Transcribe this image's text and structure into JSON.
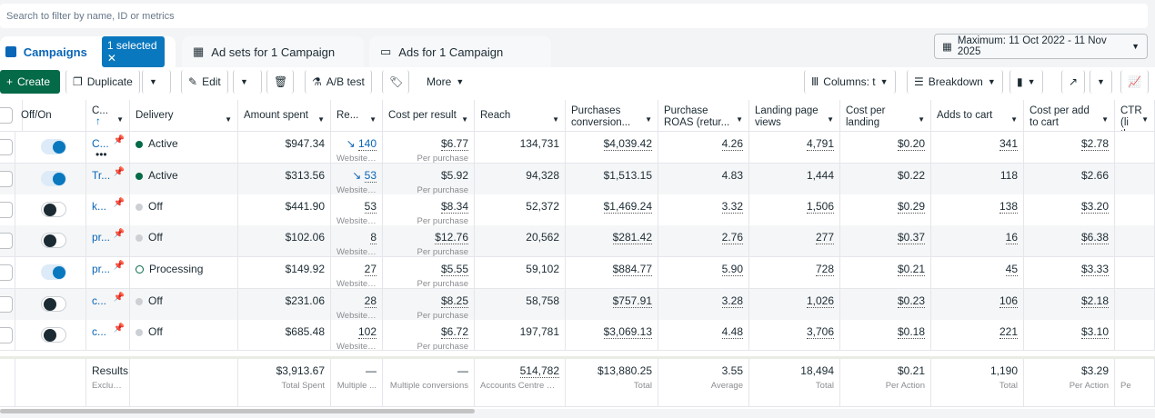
{
  "search": {
    "placeholder": "Search to filter by name, ID or metrics"
  },
  "tabs": {
    "campaigns": "Campaigns",
    "selected": "1 selected",
    "adsets": "Ad sets for 1 Campaign",
    "ads": "Ads for 1 Campaign"
  },
  "date_range": "Maximum: 11 Oct 2022 - 11 Nov 2025",
  "toolbar": {
    "create": "Create",
    "duplicate": "Duplicate",
    "edit": "Edit",
    "abtest": "A/B test",
    "more": "More",
    "columns": "Columns: t",
    "breakdown": "Breakdown"
  },
  "colors": {
    "accent": "#0a78be",
    "create": "#046a47",
    "active": "#046a47"
  },
  "columns": [
    "",
    "Off/On",
    "C...",
    "Delivery",
    "Amount spent",
    "Re...",
    "Cost per result",
    "Reach",
    "Purchases conversion...",
    "Purchase ROAS (retur...",
    "Landing page views",
    "Cost per landing page...",
    "Adds to cart",
    "Cost per add to cart",
    "CTR (li throug"
  ],
  "rows": [
    {
      "on": true,
      "name": "C...",
      "delivery": "Active",
      "status": "active",
      "spent": "$947.34",
      "results": "140",
      "trend": true,
      "results_sub": "Website ...",
      "cpr": "$6.77",
      "cpr_sub": "Per purchase",
      "reach": "134,731",
      "pconv": "$4,039.42",
      "roas": "4.26",
      "lpv": "4,791",
      "clpv": "$0.20",
      "atc": "341",
      "catc": "$2.78"
    },
    {
      "on": true,
      "name": "Tr...",
      "delivery": "Active",
      "status": "active",
      "spent": "$313.56",
      "results": "53",
      "trend": true,
      "results_sub": "Website ...",
      "cpr": "$5.92",
      "cpr_sub": "Per purchase",
      "reach": "94,328",
      "pconv": "$1,513.15",
      "roas": "4.83",
      "lpv": "1,444",
      "clpv": "$0.22",
      "atc": "118",
      "catc": "$2.66"
    },
    {
      "on": false,
      "name": "k...",
      "delivery": "Off",
      "status": "off",
      "spent": "$441.90",
      "results": "53",
      "results_sub": "Website ...",
      "cpr": "$8.34",
      "cpr_sub": "Per purchase",
      "reach": "52,372",
      "pconv": "$1,469.24",
      "roas": "3.32",
      "lpv": "1,506",
      "clpv": "$0.29",
      "atc": "138",
      "catc": "$3.20"
    },
    {
      "on": false,
      "name": "pr...",
      "delivery": "Off",
      "status": "off",
      "spent": "$102.06",
      "results": "8",
      "results_sub": "Website ...",
      "cpr": "$12.76",
      "cpr_sub": "Per purchase",
      "reach": "20,562",
      "pconv": "$281.42",
      "roas": "2.76",
      "lpv": "277",
      "clpv": "$0.37",
      "atc": "16",
      "catc": "$6.38"
    },
    {
      "on": true,
      "name": "pr...",
      "delivery": "Processing",
      "status": "processing",
      "spent": "$149.92",
      "results": "27",
      "results_sub": "Website ...",
      "cpr": "$5.55",
      "cpr_sub": "Per purchase",
      "reach": "59,102",
      "pconv": "$884.77",
      "roas": "5.90",
      "lpv": "728",
      "clpv": "$0.21",
      "atc": "45",
      "catc": "$3.33"
    },
    {
      "on": false,
      "name": "c...",
      "delivery": "Off",
      "status": "off",
      "spent": "$231.06",
      "results": "28",
      "results_sub": "Website ...",
      "cpr": "$8.25",
      "cpr_sub": "Per purchase",
      "reach": "58,758",
      "pconv": "$757.91",
      "roas": "3.28",
      "lpv": "1,026",
      "clpv": "$0.23",
      "atc": "106",
      "catc": "$2.18"
    },
    {
      "on": false,
      "name": "c...",
      "delivery": "Off",
      "status": "off",
      "spent": "$685.48",
      "results": "102",
      "results_sub": "Website ...",
      "cpr": "$6.72",
      "cpr_sub": "Per purchase",
      "reach": "197,781",
      "pconv": "$3,069.13",
      "roas": "4.48",
      "lpv": "3,706",
      "clpv": "$0.18",
      "atc": "221",
      "catc": "$3.10"
    }
  ],
  "footer": {
    "label": "Results",
    "label_sub": "Exclud...",
    "spent": "$3,913.67",
    "spent_sub": "Total Spent",
    "results": "—",
    "results_sub": "Multiple ...",
    "cpr": "—",
    "cpr_sub": "Multiple conversions",
    "reach": "514,782",
    "reach_sub": "Accounts Centre ac...",
    "pconv": "$13,880.25",
    "pconv_sub": "Total",
    "roas": "3.55",
    "roas_sub": "Average",
    "lpv": "18,494",
    "lpv_sub": "Total",
    "clpv": "$0.21",
    "clpv_sub": "Per Action",
    "atc": "1,190",
    "atc_sub": "Total",
    "catc": "$3.29",
    "catc_sub": "Per Action",
    "ctr_sub": "Pe"
  }
}
